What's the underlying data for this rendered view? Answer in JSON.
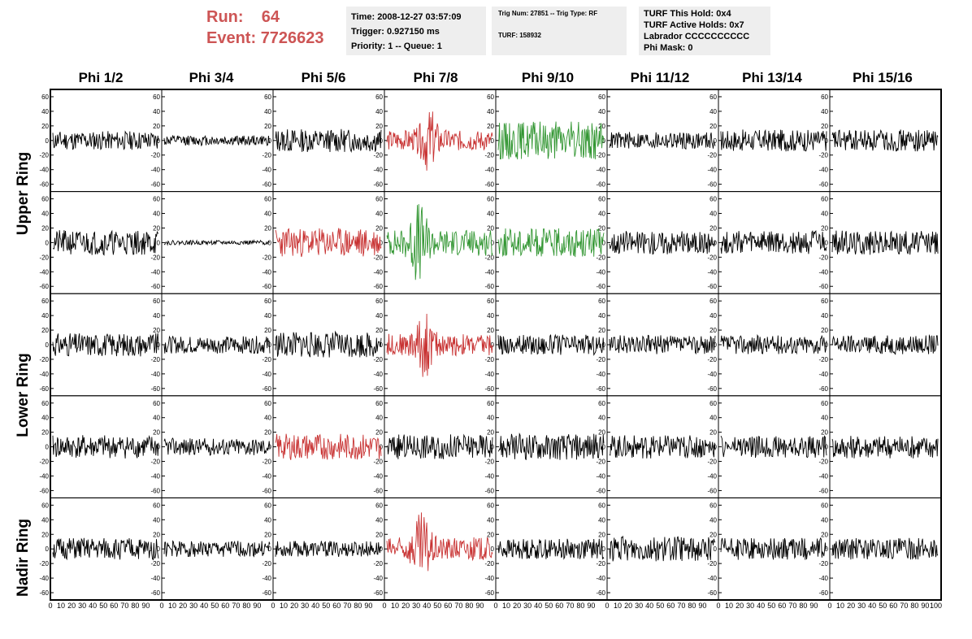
{
  "header": {
    "run_label": "Run:",
    "run_value": "64",
    "event_label": "Event:",
    "event_value": "7726623"
  },
  "info_time": {
    "time": "Time: 2008-12-27 03:57:09",
    "trigger": "Trigger: 0.927150 ms",
    "priority": "Priority: 1 -- Queue: 1"
  },
  "info_trig": {
    "trig": "Trig Num: 27851 -- Trig Type: RF",
    "turf": "TURF: 158932"
  },
  "info_turf": {
    "this_hold": "TURF This Hold: 0x4",
    "active_holds": "TURF Active Holds: 0x7",
    "labrador": "Labrador CCCCCCCCCC",
    "phi_mask": "Phi Mask: 0"
  },
  "columns": [
    "Phi 1/2",
    "Phi 3/4",
    "Phi 5/6",
    "Phi 7/8",
    "Phi 9/10",
    "Phi 11/12",
    "Phi 13/14",
    "Phi 15/16"
  ],
  "row_groups": [
    "Upper Ring",
    "Lower Ring",
    "Nadir Ring"
  ],
  "colors": {
    "normal": "#000000",
    "red": "#c83232",
    "green": "#329632"
  },
  "chart_data": {
    "type": "line",
    "ylim": [
      -70,
      70
    ],
    "xlim": [
      0,
      100
    ],
    "yticks": [
      -60,
      -40,
      -20,
      0,
      20,
      40,
      60
    ],
    "xtick_labels": [
      "0",
      "10",
      "20",
      "30",
      "40",
      "50",
      "60",
      "70",
      "80",
      "90",
      "100"
    ],
    "panels": [
      {
        "row": 0,
        "col": 0,
        "color": "normal",
        "amp": 13,
        "seed": 11
      },
      {
        "row": 0,
        "col": 1,
        "color": "normal",
        "amp": 7,
        "seed": 12
      },
      {
        "row": 0,
        "col": 2,
        "color": "normal",
        "amp": 16,
        "seed": 13
      },
      {
        "row": 0,
        "col": 3,
        "color": "red",
        "amp": 14,
        "seed": 14,
        "burst": 40
      },
      {
        "row": 0,
        "col": 4,
        "color": "green",
        "amp": 26,
        "seed": 15
      },
      {
        "row": 0,
        "col": 5,
        "color": "normal",
        "amp": 12,
        "seed": 16
      },
      {
        "row": 0,
        "col": 6,
        "color": "normal",
        "amp": 15,
        "seed": 17
      },
      {
        "row": 0,
        "col": 7,
        "color": "normal",
        "amp": 15,
        "seed": 18
      },
      {
        "row": 1,
        "col": 0,
        "color": "normal",
        "amp": 17,
        "seed": 21
      },
      {
        "row": 1,
        "col": 1,
        "color": "normal",
        "amp": 3,
        "seed": 22
      },
      {
        "row": 1,
        "col": 2,
        "color": "red",
        "amp": 20,
        "seed": 23
      },
      {
        "row": 1,
        "col": 3,
        "color": "green",
        "amp": 18,
        "seed": 24,
        "burst": 30
      },
      {
        "row": 1,
        "col": 4,
        "color": "green",
        "amp": 20,
        "seed": 25
      },
      {
        "row": 1,
        "col": 5,
        "color": "normal",
        "amp": 16,
        "seed": 26
      },
      {
        "row": 1,
        "col": 6,
        "color": "normal",
        "amp": 16,
        "seed": 27
      },
      {
        "row": 1,
        "col": 7,
        "color": "normal",
        "amp": 17,
        "seed": 28
      },
      {
        "row": 2,
        "col": 0,
        "color": "normal",
        "amp": 16,
        "seed": 31
      },
      {
        "row": 2,
        "col": 1,
        "color": "normal",
        "amp": 12,
        "seed": 32
      },
      {
        "row": 2,
        "col": 2,
        "color": "normal",
        "amp": 18,
        "seed": 33
      },
      {
        "row": 2,
        "col": 3,
        "color": "red",
        "amp": 15,
        "seed": 34,
        "burst": 35
      },
      {
        "row": 2,
        "col": 4,
        "color": "normal",
        "amp": 14,
        "seed": 35
      },
      {
        "row": 2,
        "col": 5,
        "color": "normal",
        "amp": 13,
        "seed": 36
      },
      {
        "row": 2,
        "col": 6,
        "color": "normal",
        "amp": 13,
        "seed": 37
      },
      {
        "row": 2,
        "col": 7,
        "color": "normal",
        "amp": 13,
        "seed": 38
      },
      {
        "row": 3,
        "col": 0,
        "color": "normal",
        "amp": 16,
        "seed": 41
      },
      {
        "row": 3,
        "col": 1,
        "color": "normal",
        "amp": 12,
        "seed": 42
      },
      {
        "row": 3,
        "col": 2,
        "color": "red",
        "amp": 18,
        "seed": 43
      },
      {
        "row": 3,
        "col": 3,
        "color": "normal",
        "amp": 17,
        "seed": 44
      },
      {
        "row": 3,
        "col": 4,
        "color": "normal",
        "amp": 18,
        "seed": 45
      },
      {
        "row": 3,
        "col": 5,
        "color": "normal",
        "amp": 16,
        "seed": 46
      },
      {
        "row": 3,
        "col": 6,
        "color": "normal",
        "amp": 15,
        "seed": 47
      },
      {
        "row": 3,
        "col": 7,
        "color": "normal",
        "amp": 16,
        "seed": 48
      },
      {
        "row": 4,
        "col": 0,
        "color": "normal",
        "amp": 15,
        "seed": 51
      },
      {
        "row": 4,
        "col": 1,
        "color": "normal",
        "amp": 11,
        "seed": 52
      },
      {
        "row": 4,
        "col": 2,
        "color": "normal",
        "amp": 11,
        "seed": 53
      },
      {
        "row": 4,
        "col": 3,
        "color": "red",
        "amp": 16,
        "seed": 54,
        "burst": 33
      },
      {
        "row": 4,
        "col": 4,
        "color": "normal",
        "amp": 14,
        "seed": 55
      },
      {
        "row": 4,
        "col": 5,
        "color": "normal",
        "amp": 17,
        "seed": 56
      },
      {
        "row": 4,
        "col": 6,
        "color": "normal",
        "amp": 15,
        "seed": 57
      },
      {
        "row": 4,
        "col": 7,
        "color": "normal",
        "amp": 15,
        "seed": 58
      }
    ]
  }
}
